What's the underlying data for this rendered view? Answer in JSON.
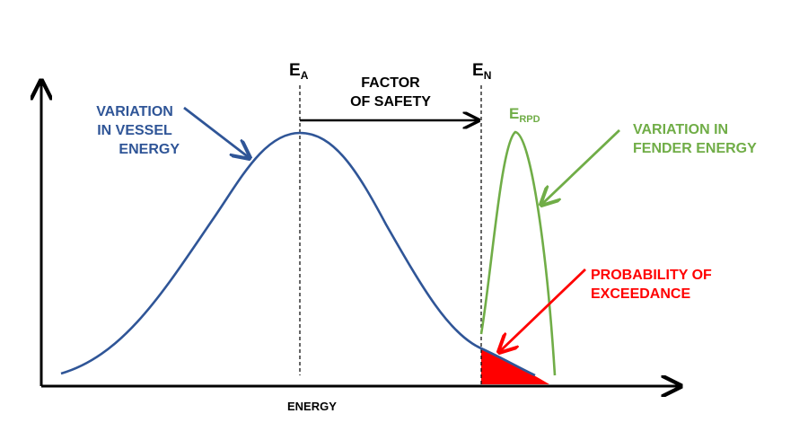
{
  "diagram": {
    "x_axis_label": "ENERGY",
    "marker_ea": {
      "main": "E",
      "sub": "A"
    },
    "marker_en": {
      "main": "E",
      "sub": "N"
    },
    "marker_erpd": {
      "main": "E",
      "sub": "RPD"
    },
    "factor_of_safety": [
      "FACTOR",
      "OF SAFETY"
    ],
    "vessel_label": [
      "VARIATION",
      "IN VESSEL",
      "ENERGY"
    ],
    "fender_label": [
      "VARIATION IN",
      "FENDER ENERGY"
    ],
    "exceedance_label": [
      "PROBABILITY OF",
      "EXCEEDANCE"
    ]
  },
  "colors": {
    "vessel": "#2f5597",
    "fender": "#70ad47",
    "exceedance": "#ff0000",
    "axis": "#000000"
  }
}
